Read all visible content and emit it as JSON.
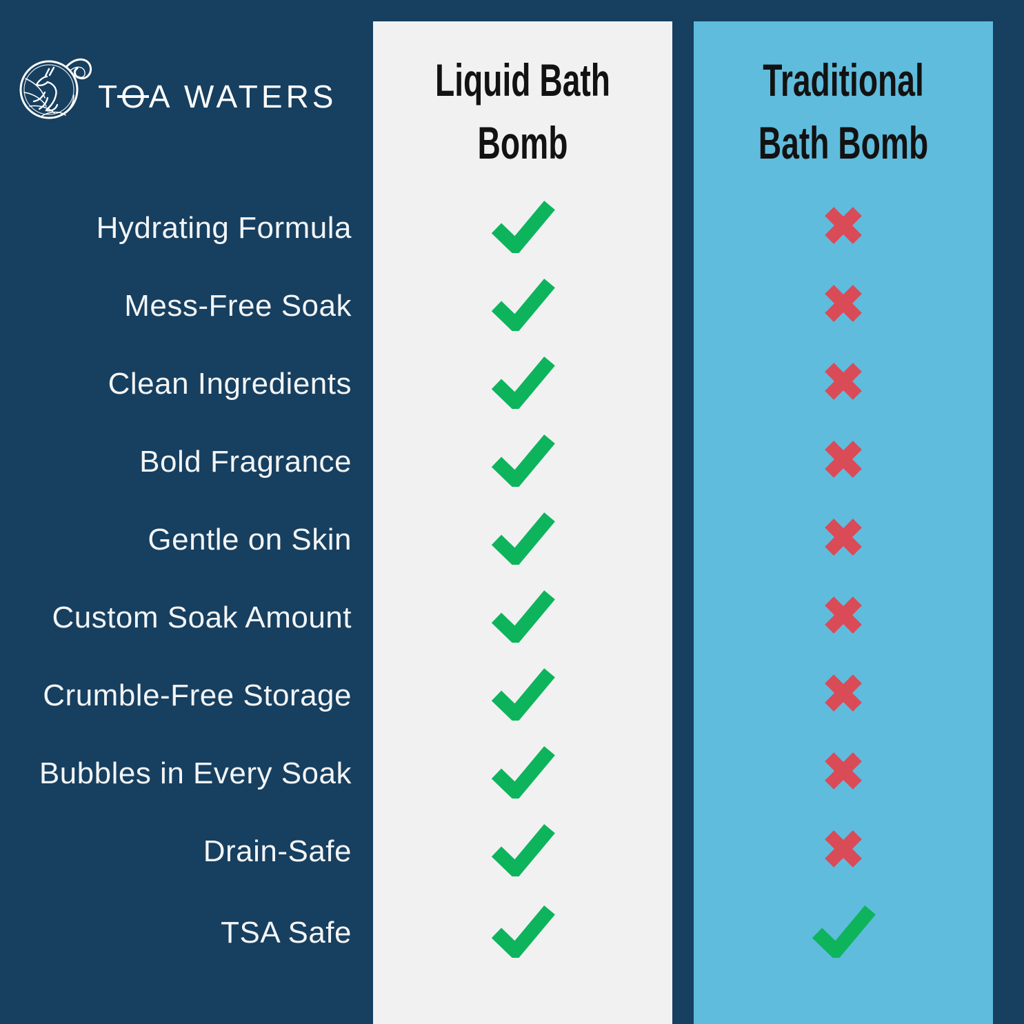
{
  "brand": {
    "name_prefix": "T",
    "name_stylized_o": "O",
    "name_suffix": "A WATERS",
    "logo_icon": "seahorse-wave-emblem"
  },
  "columns": [
    {
      "title_line1": "Liquid Bath",
      "title_line2": "Bomb"
    },
    {
      "title_line1": "Traditional",
      "title_line2": "Bath Bomb"
    }
  ],
  "chart_data": {
    "type": "table",
    "title": "Liquid Bath Bomb vs Traditional Bath Bomb feature comparison",
    "columns": [
      "Liquid Bath Bomb",
      "Traditional Bath Bomb"
    ],
    "rows": [
      {
        "feature": "Hydrating Formula",
        "liquid_bath_bomb": true,
        "traditional_bath_bomb": false
      },
      {
        "feature": "Mess-Free Soak",
        "liquid_bath_bomb": true,
        "traditional_bath_bomb": false
      },
      {
        "feature": "Clean Ingredients",
        "liquid_bath_bomb": true,
        "traditional_bath_bomb": false
      },
      {
        "feature": "Bold Fragrance",
        "liquid_bath_bomb": true,
        "traditional_bath_bomb": false
      },
      {
        "feature": "Gentle on Skin",
        "liquid_bath_bomb": true,
        "traditional_bath_bomb": false
      },
      {
        "feature": "Custom Soak Amount",
        "liquid_bath_bomb": true,
        "traditional_bath_bomb": false
      },
      {
        "feature": "Crumble-Free Storage",
        "liquid_bath_bomb": true,
        "traditional_bath_bomb": false
      },
      {
        "feature": "Bubbles in Every Soak",
        "liquid_bath_bomb": true,
        "traditional_bath_bomb": false
      },
      {
        "feature": "Drain-Safe",
        "liquid_bath_bomb": true,
        "traditional_bath_bomb": false
      },
      {
        "feature": "TSA Safe",
        "liquid_bath_bomb": true,
        "traditional_bath_bomb": true
      }
    ]
  },
  "colors": {
    "background": "#173F5F",
    "column_left_bg": "#F1F1F2",
    "column_right_bg": "#5FBCDD",
    "check": "#0DB45C",
    "cross": "#D94B57",
    "header_text": "#121212",
    "label_text": "#F2F5F7",
    "brand_text": "#FFFFFF"
  }
}
